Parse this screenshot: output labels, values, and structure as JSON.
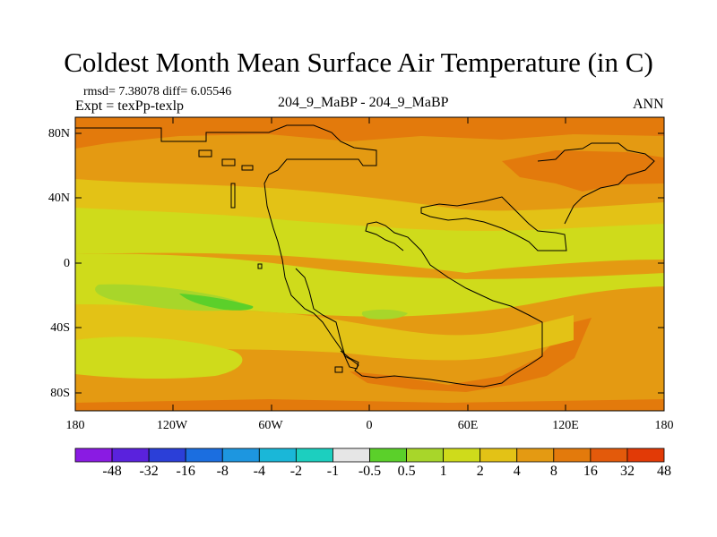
{
  "title": "Coldest Month Mean Surface Air Temperature (in C)",
  "stats": "rmsd= 7.38078  diff= 6.05546",
  "expt": "Expt = texPp-texlp",
  "center_label": "204_9_MaBP - 204_9_MaBP",
  "period": "ANN",
  "lat_labels": [
    "80N",
    "40N",
    "0",
    "40S",
    "80S"
  ],
  "lon_labels": [
    "180",
    "120W",
    "60W",
    "0",
    "60E",
    "120E",
    "180"
  ],
  "colorbar": {
    "labels": [
      "-48",
      "-32",
      "-16",
      "-8",
      "-4",
      "-2",
      "-1",
      "-0.5",
      "0.5",
      "1",
      "2",
      "4",
      "8",
      "16",
      "32",
      "48"
    ],
    "colors": [
      "#8a1be3",
      "#5a22dd",
      "#2b3fd8",
      "#1b6ee0",
      "#1d96e0",
      "#1ab7d8",
      "#1ccfbf",
      "#e6e6e6",
      "#5bd02a",
      "#a8d62a",
      "#cfdb1b",
      "#e3c216",
      "#e49a12",
      "#e37a0c",
      "#e35a0b",
      "#e23a06"
    ]
  },
  "map_colors": {
    "bg": "#e49a12",
    "warm": "#e37a0c",
    "band": "#e3c216",
    "yellow": "#cfdb1b",
    "green": "#a8d62a",
    "brightgreen": "#5bd02a"
  }
}
